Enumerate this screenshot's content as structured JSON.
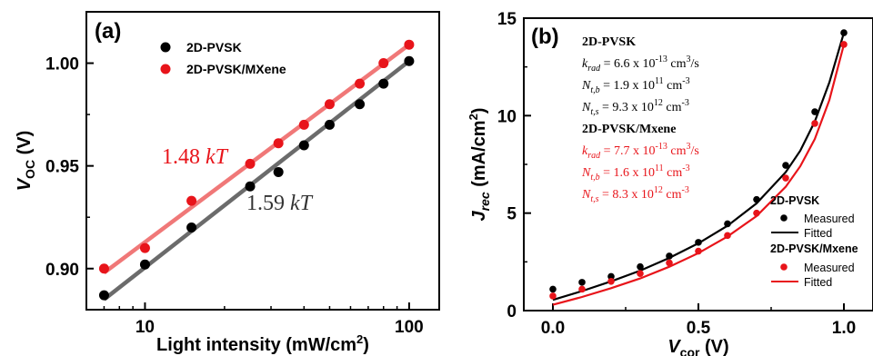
{
  "chart_data": [
    {
      "panel": "(a)",
      "type": "scatter",
      "xlabel": "Light intensity (mW/cm²)",
      "ylabel": "Voc (V)",
      "xscale": "log",
      "xlim": [
        6,
        130
      ],
      "ylim": [
        0.88,
        1.025
      ],
      "xticks": [
        10,
        100
      ],
      "xtick_labels": [
        "10",
        "100"
      ],
      "yticks": [
        0.9,
        0.95,
        1.0
      ],
      "ytick_labels": [
        "0.90",
        "0.95",
        "1.00"
      ],
      "legend_position": "top",
      "series": [
        {
          "name": "2D-PVSK",
          "color": "#000000",
          "fit_color": "#6b6b6b",
          "annotation": "1.59 kT",
          "annotation_color": "#333333",
          "x": [
            7,
            10,
            15,
            25,
            32,
            40,
            50,
            65,
            80,
            100
          ],
          "y": [
            0.887,
            0.902,
            0.92,
            0.94,
            0.947,
            0.96,
            0.97,
            0.98,
            0.99,
            1.001
          ],
          "fit": [
            [
              7,
              0.885
            ],
            [
              100,
              1.001
            ]
          ]
        },
        {
          "name": "2D-PVSK/MXene",
          "color": "#e8141a",
          "fit_color": "#f07878",
          "annotation": "1.48 kT",
          "annotation_color": "#e8141a",
          "x": [
            7,
            10,
            15,
            25,
            32,
            40,
            50,
            65,
            80,
            100
          ],
          "y": [
            0.9,
            0.91,
            0.933,
            0.951,
            0.961,
            0.97,
            0.98,
            0.99,
            1.0,
            1.009
          ],
          "fit": [
            [
              7,
              0.898
            ],
            [
              100,
              1.009
            ]
          ]
        }
      ]
    },
    {
      "panel": "(b)",
      "type": "scatter",
      "xlabel": "Vcor (V)",
      "ylabel": "Jrec (mA/cm²)",
      "xlim": [
        -0.1,
        1.1
      ],
      "ylim": [
        0,
        15
      ],
      "xticks": [
        0.0,
        0.5,
        1.0
      ],
      "xtick_labels": [
        "0.0",
        "0.5",
        "1.0"
      ],
      "yticks": [
        0,
        5,
        10,
        15
      ],
      "ytick_labels": [
        "0",
        "5",
        "10",
        "15"
      ],
      "legend_position": "bottom-right",
      "legend_group_1": "2D-PVSK",
      "legend_group_2": "2D-PVSK/Mxene",
      "legend_measured": "Measured",
      "legend_fitted": "Fitted",
      "series": [
        {
          "name": "2D-PVSK",
          "color": "#000000",
          "measured_x": [
            0.0,
            0.1,
            0.2,
            0.3,
            0.4,
            0.5,
            0.6,
            0.7,
            0.8,
            0.9,
            1.0
          ],
          "measured_y": [
            1.1,
            1.45,
            1.75,
            2.25,
            2.8,
            3.5,
            4.45,
            5.7,
            7.45,
            10.2,
            14.25
          ],
          "fitted_x": [
            0.0,
            0.1,
            0.2,
            0.3,
            0.4,
            0.5,
            0.6,
            0.7,
            0.8,
            0.85,
            0.9,
            0.95,
            1.0
          ],
          "fitted_y": [
            0.55,
            1.0,
            1.5,
            2.05,
            2.7,
            3.45,
            4.35,
            5.5,
            7.1,
            8.2,
            9.7,
            11.7,
            14.25
          ]
        },
        {
          "name": "2D-PVSK/Mxene",
          "color": "#e8141a",
          "measured_x": [
            0.0,
            0.1,
            0.2,
            0.3,
            0.4,
            0.5,
            0.6,
            0.7,
            0.8,
            0.9,
            1.0
          ],
          "measured_y": [
            0.75,
            1.1,
            1.5,
            1.9,
            2.45,
            3.05,
            3.85,
            5.0,
            6.8,
            9.6,
            13.65
          ],
          "fitted_x": [
            0.0,
            0.1,
            0.2,
            0.3,
            0.4,
            0.5,
            0.6,
            0.7,
            0.8,
            0.85,
            0.9,
            0.95,
            1.0
          ],
          "fitted_y": [
            0.3,
            0.7,
            1.15,
            1.65,
            2.25,
            2.95,
            3.8,
            4.85,
            6.35,
            7.4,
            8.8,
            10.8,
            13.65
          ]
        }
      ],
      "parameter_box": [
        {
          "label": "2D-PVSK",
          "bold": true,
          "color": "#000000"
        },
        {
          "label": "k_rad = 6.6 x 10^-13 cm^3/s",
          "color": "#000000"
        },
        {
          "label": "N_t,b = 1.9 x 10^11 cm^-3",
          "color": "#000000"
        },
        {
          "label": "N_t,s = 9.3 x 10^12 cm^-3",
          "color": "#000000"
        },
        {
          "label": "2D-PVSK/Mxene",
          "bold": true,
          "color": "#000000"
        },
        {
          "label": "k_rad = 7.7 x 10^-13 cm^3/s",
          "color": "#e8141a"
        },
        {
          "label": "N_t,b = 1.6 x 10^11 cm^-3",
          "color": "#e8141a"
        },
        {
          "label": "N_t,s = 8.3 x 10^12 cm^-3",
          "color": "#e8141a"
        }
      ]
    }
  ]
}
